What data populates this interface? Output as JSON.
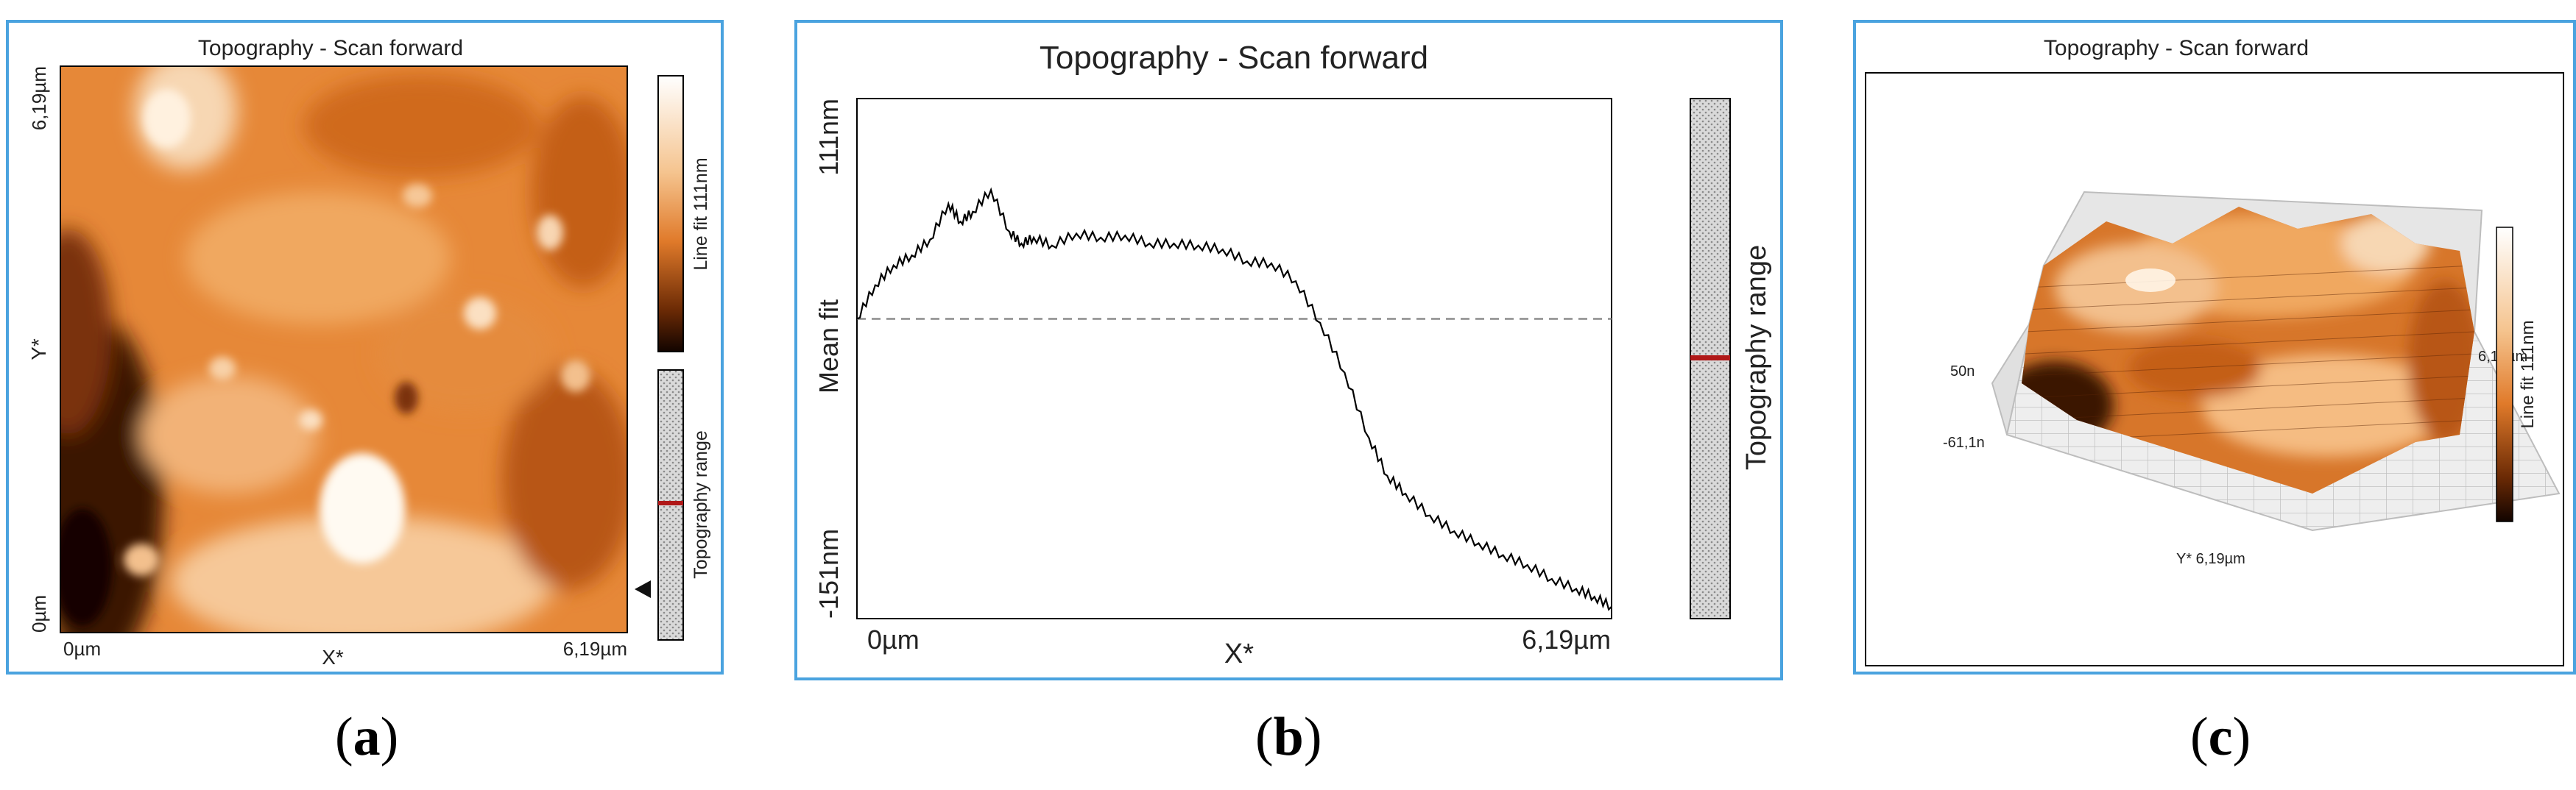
{
  "chart_data": [
    {
      "panel": "a",
      "type": "heatmap",
      "title": "Topography - Scan forward",
      "xlabel": "X*",
      "ylabel": "Y*",
      "x_ticks": [
        "0µm",
        "6,19µm"
      ],
      "y_ticks": [
        "0µm",
        "6,19µm"
      ],
      "colorbar_label": "Line fit 111nm",
      "range_bar_label": "Topography range",
      "colors": {
        "dark": "#1a0700",
        "mid": "#e07a2a",
        "light": "#fff4e6"
      }
    },
    {
      "panel": "b",
      "type": "line",
      "title": "Topography - Scan forward",
      "xlabel": "X*",
      "ylabel": "Mean fit",
      "x_ticks": [
        "0µm",
        "6,19µm"
      ],
      "y_ticks": [
        "111nm",
        "-151nm"
      ],
      "xlim": [
        0,
        6.19
      ],
      "ylim": [
        -151,
        111
      ],
      "mean_line": 0,
      "range_bar_label": "Topography range",
      "series": [
        {
          "x": [
            0,
            0.15,
            0.3,
            0.45,
            0.6,
            0.75,
            0.85,
            0.95,
            1.1,
            1.25,
            1.35,
            1.45,
            1.6,
            1.8,
            2.0,
            2.2,
            2.4,
            2.6,
            2.8,
            3.0,
            3.2,
            3.4,
            3.6,
            3.8,
            4.0,
            4.2,
            4.35,
            4.5,
            4.7,
            4.9,
            5.1,
            5.3,
            5.5,
            5.7,
            5.9,
            6.05,
            6.19
          ],
          "values": [
            0,
            17,
            27,
            32,
            40,
            58,
            49,
            54,
            65,
            44,
            38,
            41,
            37,
            43,
            41,
            42,
            38,
            38,
            37,
            35,
            29,
            28,
            19,
            -2,
            -27,
            -60,
            -79,
            -88,
            -99,
            -107,
            -113,
            -119,
            -124,
            -131,
            -136,
            -140,
            -145
          ]
        }
      ]
    },
    {
      "panel": "c",
      "type": "surface-3d",
      "title": "Topography - Scan forward",
      "z_ticks": [
        "50n",
        "-61,1n"
      ],
      "x_axis_label": "6,19µm",
      "y_axis_label": "Y* 6,19µm",
      "colorbar_label": "Line fit 111nm"
    }
  ],
  "captions": [
    "a",
    "b",
    "c"
  ]
}
